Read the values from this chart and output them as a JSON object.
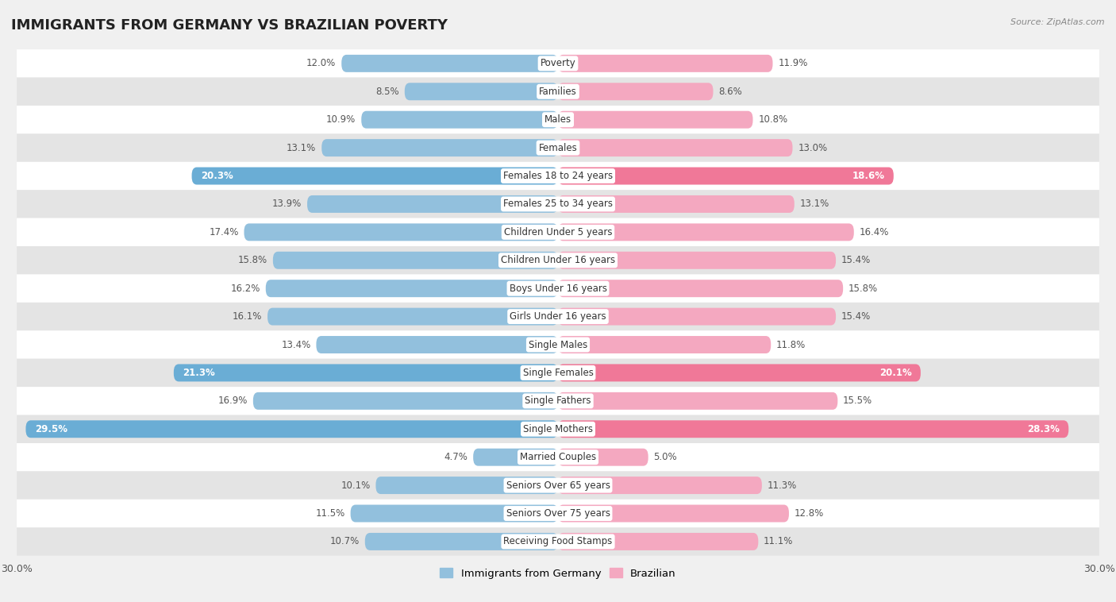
{
  "title": "IMMIGRANTS FROM GERMANY VS BRAZILIAN POVERTY",
  "source": "Source: ZipAtlas.com",
  "categories": [
    "Poverty",
    "Families",
    "Males",
    "Females",
    "Females 18 to 24 years",
    "Females 25 to 34 years",
    "Children Under 5 years",
    "Children Under 16 years",
    "Boys Under 16 years",
    "Girls Under 16 years",
    "Single Males",
    "Single Females",
    "Single Fathers",
    "Single Mothers",
    "Married Couples",
    "Seniors Over 65 years",
    "Seniors Over 75 years",
    "Receiving Food Stamps"
  ],
  "germany_values": [
    12.0,
    8.5,
    10.9,
    13.1,
    20.3,
    13.9,
    17.4,
    15.8,
    16.2,
    16.1,
    13.4,
    21.3,
    16.9,
    29.5,
    4.7,
    10.1,
    11.5,
    10.7
  ],
  "brazil_values": [
    11.9,
    8.6,
    10.8,
    13.0,
    18.6,
    13.1,
    16.4,
    15.4,
    15.8,
    15.4,
    11.8,
    20.1,
    15.5,
    28.3,
    5.0,
    11.3,
    12.8,
    11.1
  ],
  "germany_color": "#92c0dd",
  "brazil_color": "#f4a8c0",
  "germany_highlight_color": "#6aadd5",
  "brazil_highlight_color": "#f07898",
  "highlight_threshold": 18.0,
  "xlim": 30.0,
  "background_color": "#f0f0f0",
  "row_bg_white": "#ffffff",
  "row_bg_gray": "#e4e4e4",
  "title_fontsize": 13,
  "label_fontsize": 8.5,
  "value_fontsize": 8.5,
  "legend_germany": "Immigrants from Germany",
  "legend_brazil": "Brazilian"
}
